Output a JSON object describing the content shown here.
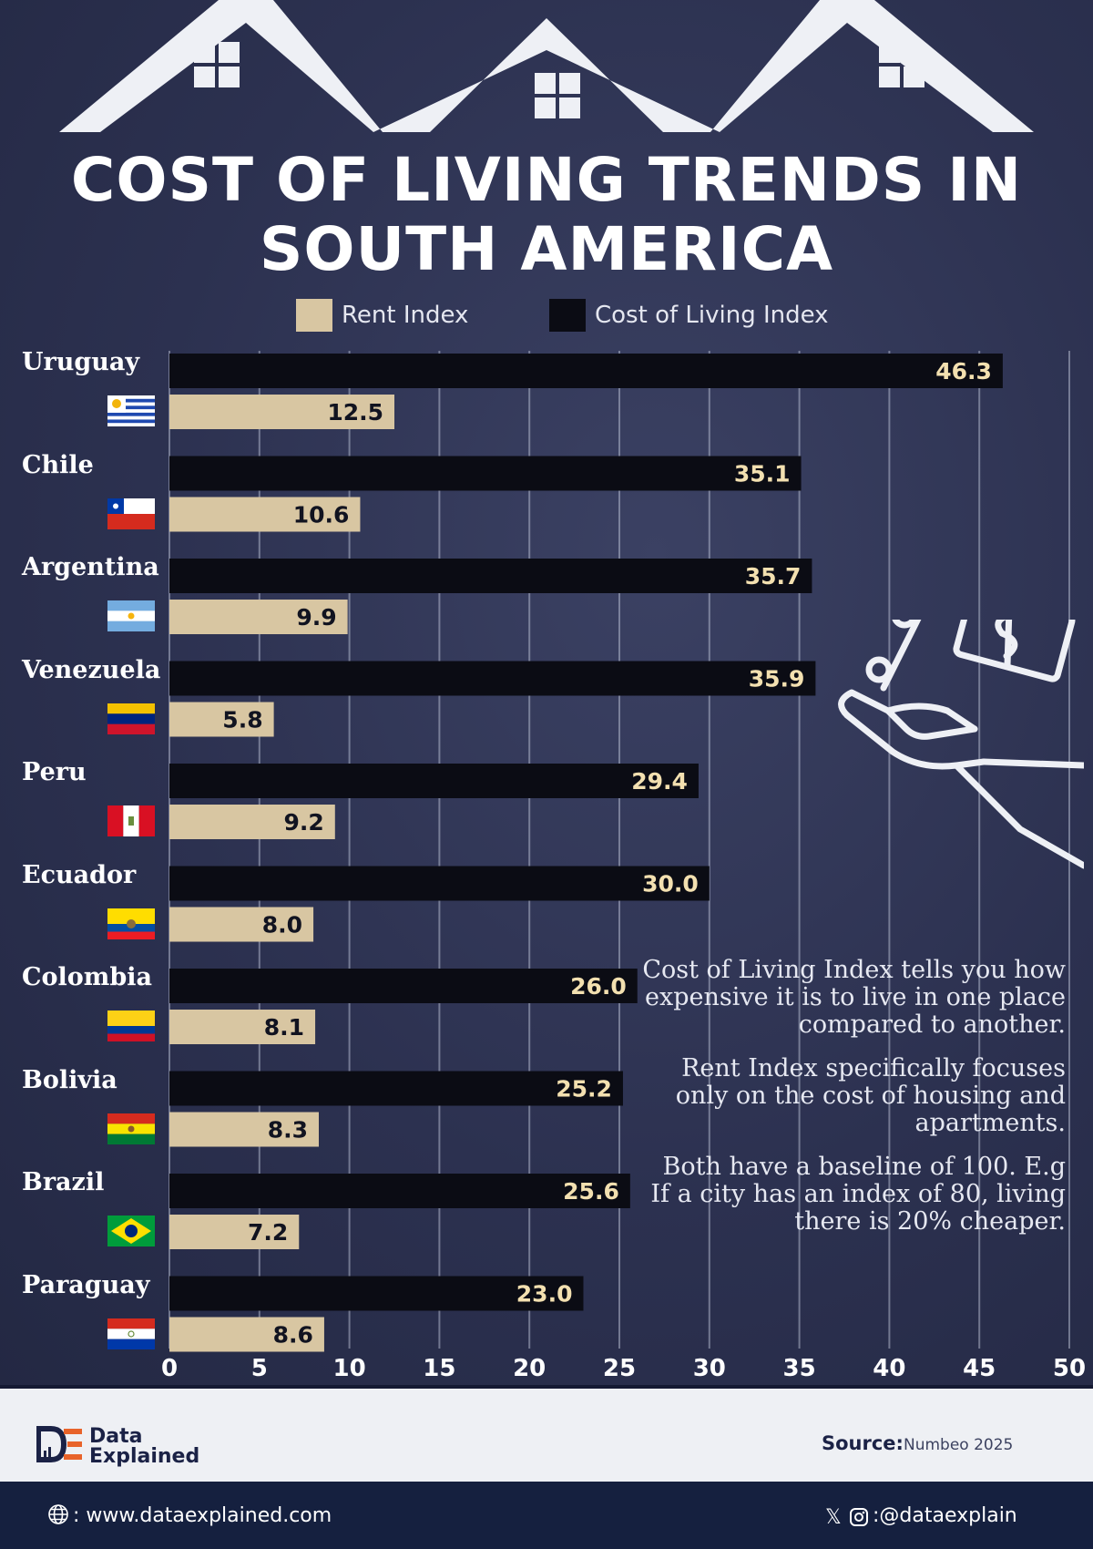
{
  "colors": {
    "background": "#2e3352",
    "rent": "#d8c6a2",
    "cost_of_living": "#0b0c14",
    "cost_label": "#f3e0b0",
    "footer_dark": "#15203f"
  },
  "chart_data": {
    "type": "bar",
    "orientation": "horizontal",
    "title": "COST OF LIVING TRENDS IN SOUTH AMERICA",
    "title_lines": [
      "COST OF LIVING TRENDS IN",
      "SOUTH AMERICA"
    ],
    "categories": [
      "Uruguay",
      "Chile",
      "Argentina",
      "Venezuela",
      "Peru",
      "Ecuador",
      "Colombia",
      "Bolivia",
      "Brazil",
      "Paraguay"
    ],
    "series": [
      {
        "name": "Cost of Living Index",
        "color": "#0b0c14",
        "values": [
          46.3,
          35.1,
          35.7,
          35.9,
          29.4,
          30.0,
          26.0,
          25.2,
          25.6,
          23.0
        ]
      },
      {
        "name": "Rent Index",
        "color": "#d8c6a2",
        "values": [
          12.5,
          10.6,
          9.9,
          5.8,
          9.2,
          8.0,
          8.1,
          8.3,
          7.2,
          8.6
        ]
      }
    ],
    "legend": [
      {
        "label": "Rent Index",
        "color": "#d8c6a2"
      },
      {
        "label": "Cost of Living Index",
        "color": "#0b0c14"
      }
    ],
    "legend_position": "top",
    "xlim": [
      0,
      50
    ],
    "xticks": [
      "0",
      "5",
      "10",
      "15",
      "20",
      "25",
      "30",
      "35",
      "40",
      "45",
      "50"
    ],
    "grid": true,
    "xlabel": "",
    "ylabel": ""
  },
  "flags": [
    "uruguay-flag-icon",
    "chile-flag-icon",
    "argentina-flag-icon",
    "venezuela-flag-icon",
    "peru-flag-icon",
    "ecuador-flag-icon",
    "colombia-flag-icon",
    "bolivia-flag-icon",
    "brazil-flag-icon",
    "paraguay-flag-icon"
  ],
  "note": {
    "p1": "Cost of Living Index tells you how expensive it is to live in one place compared to another.",
    "p2": "Rent Index specifically focuses only on the cost of housing and apartments.",
    "p3": "Both have a baseline of 100. E.g If a city has an index of 80, living there is 20% cheaper."
  },
  "footer": {
    "brand_line1": "Data",
    "brand_line2": "Explained",
    "source_label": "Source:",
    "source_value": "Numbeo 2025",
    "website": ": www.dataexplained.com",
    "social_handle": ":@dataexplain"
  }
}
